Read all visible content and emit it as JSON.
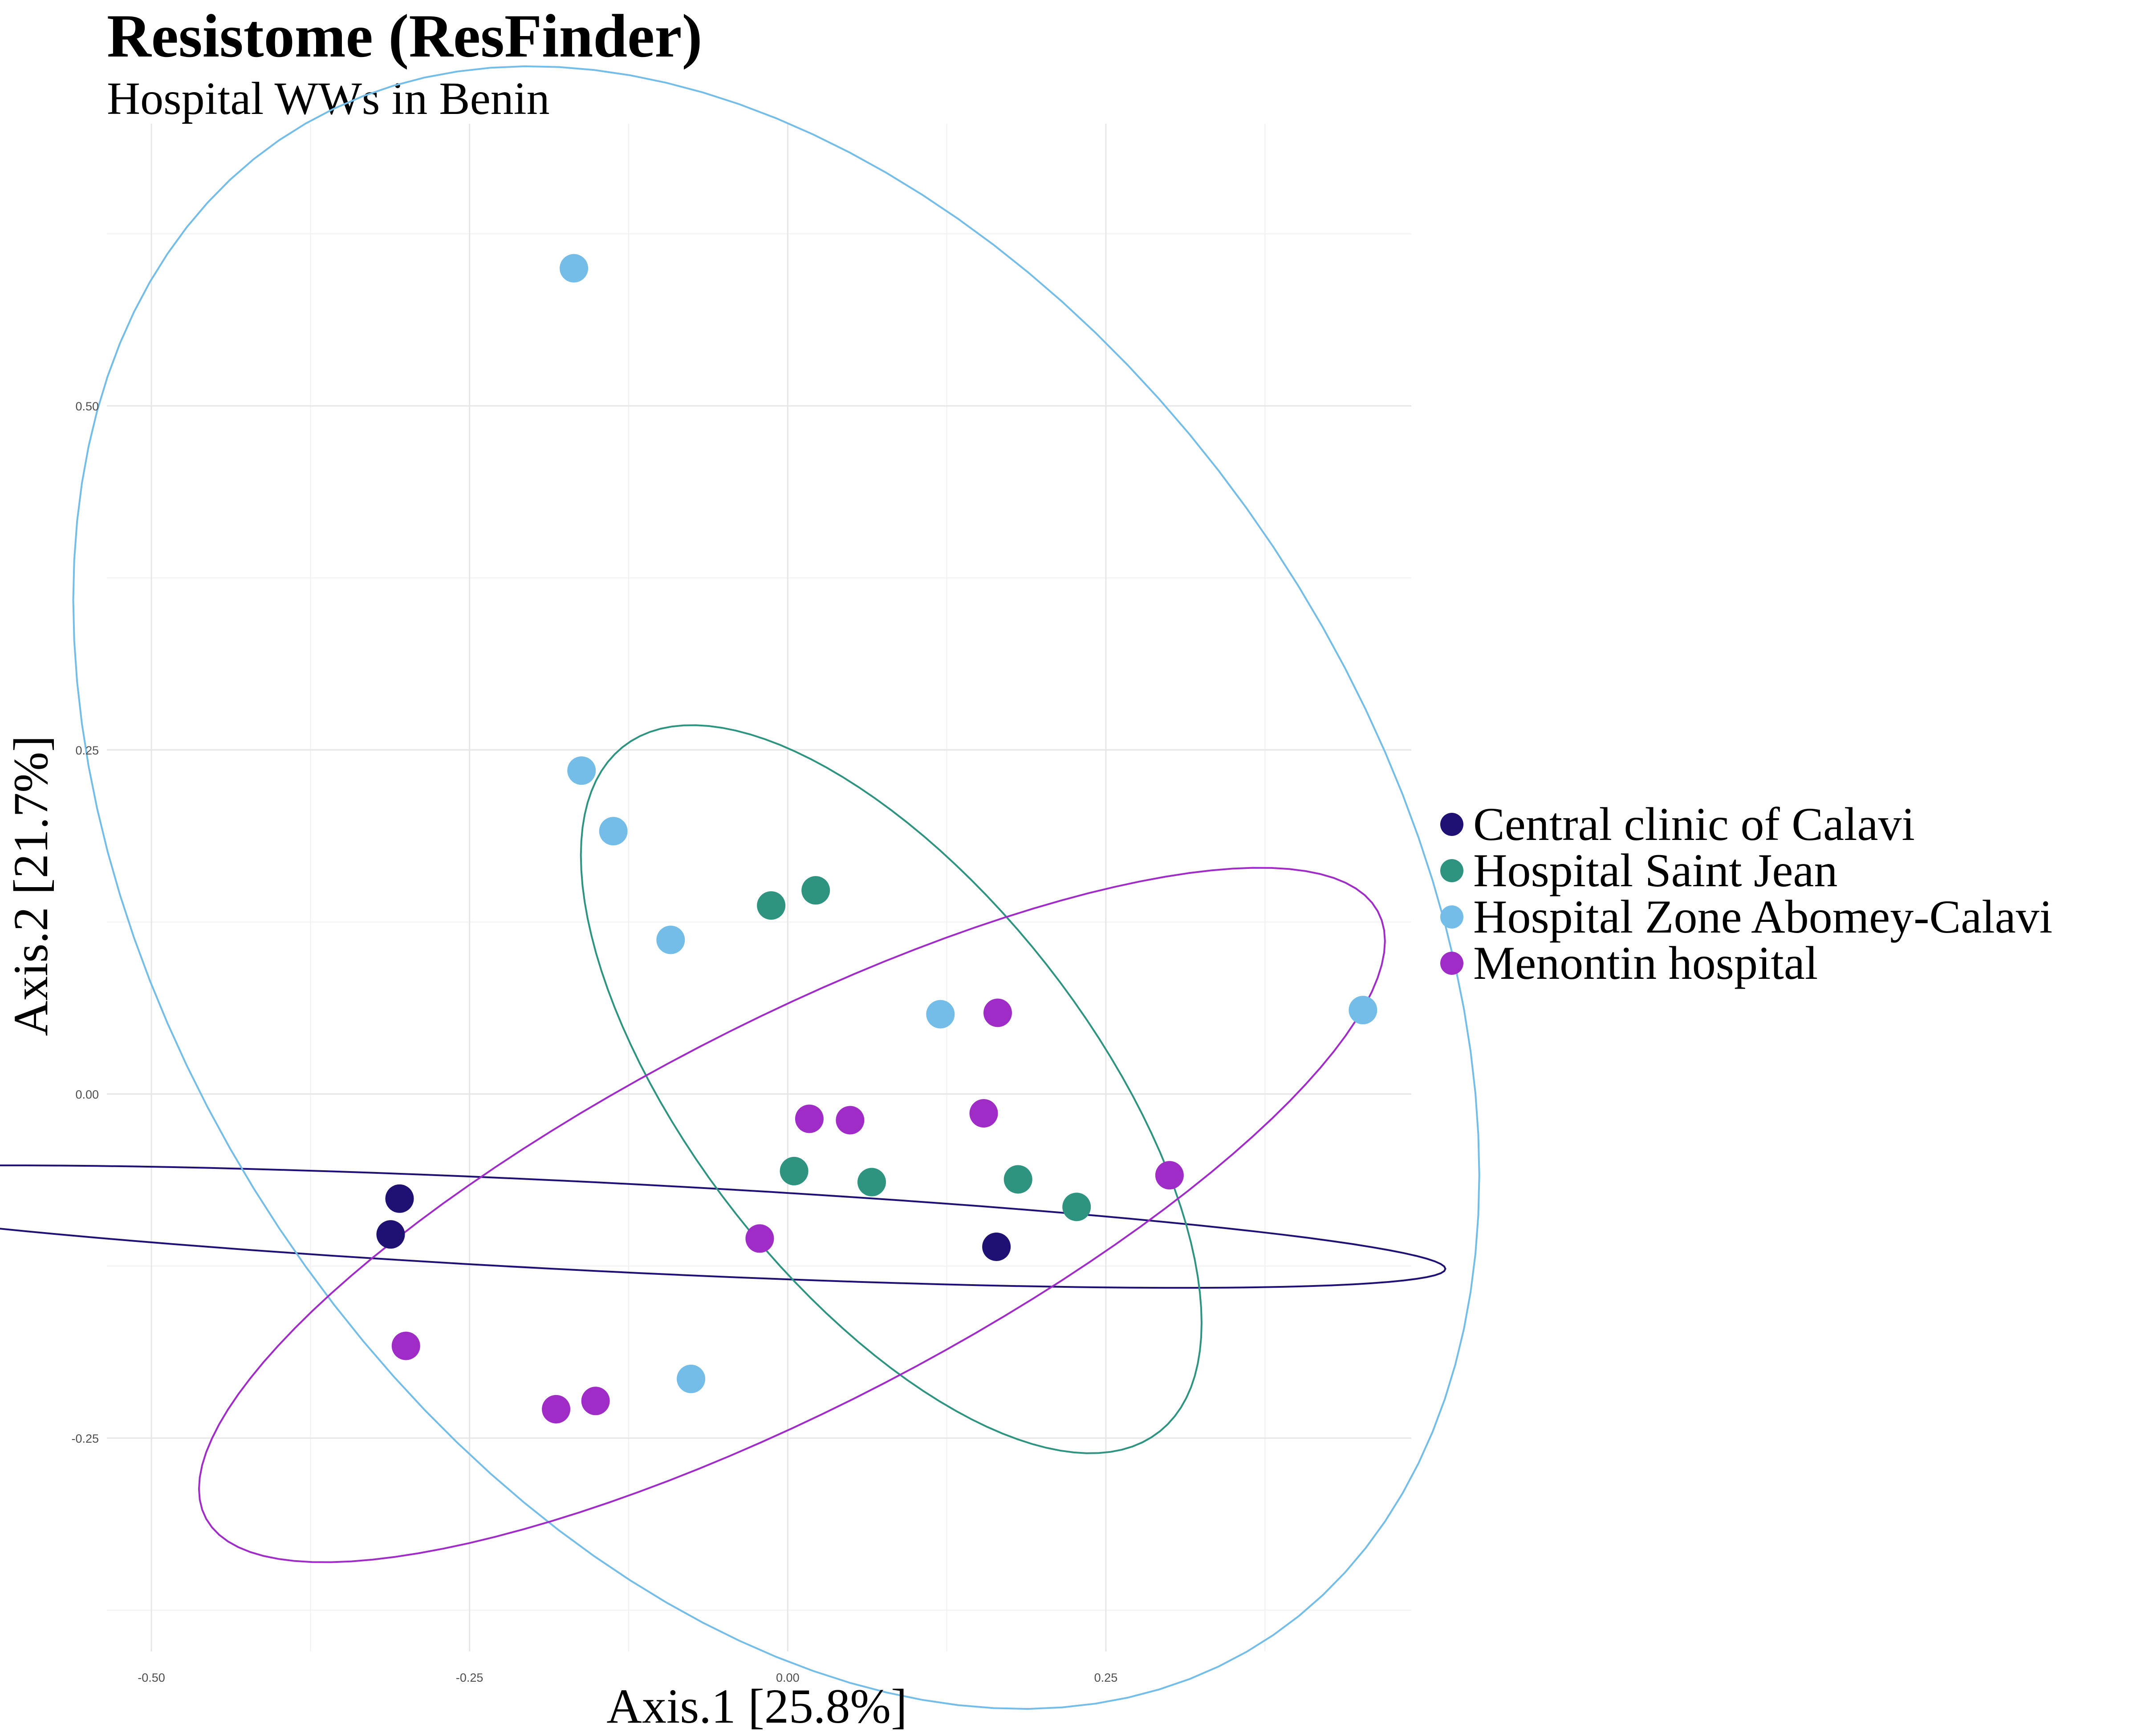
{
  "chart_data": {
    "type": "scatter",
    "title": "Resistome (ResFinder)",
    "subtitle": "Hospital WWs in Benin",
    "xlabel": "Axis.1   [25.8%]",
    "ylabel": "Axis.2   [21.7%]",
    "xlim": [
      -0.535,
      0.49
    ],
    "ylim": [
      -0.405,
      0.705
    ],
    "x_ticks": [
      -0.5,
      -0.25,
      0.0,
      0.25
    ],
    "x_tick_labels": [
      "-0.50",
      "-0.25",
      "0.00",
      "0.25"
    ],
    "y_ticks": [
      -0.25,
      0.0,
      0.25,
      0.5
    ],
    "y_tick_labels": [
      "-0.25",
      "0.00",
      "0.25",
      "0.50"
    ],
    "grid": true,
    "legend_position": "right",
    "series": [
      {
        "name": "Central clinic of Calavi",
        "color": "#1f1173",
        "points": [
          [
            -0.305,
            -0.076
          ],
          [
            -0.312,
            -0.102
          ],
          [
            0.164,
            -0.111
          ]
        ]
      },
      {
        "name": "Hospital Saint Jean",
        "color": "#2e9480",
        "points": [
          [
            -0.013,
            0.137
          ],
          [
            0.022,
            0.148
          ],
          [
            0.005,
            -0.056
          ],
          [
            0.066,
            -0.064
          ],
          [
            0.181,
            -0.062
          ],
          [
            0.227,
            -0.082
          ]
        ]
      },
      {
        "name": "Hospital Zone Abomey-Calavi",
        "color": "#73bde8",
        "points": [
          [
            -0.168,
            0.6
          ],
          [
            -0.162,
            0.235
          ],
          [
            -0.137,
            0.191
          ],
          [
            -0.092,
            0.112
          ],
          [
            0.12,
            0.058
          ],
          [
            0.452,
            0.061
          ],
          [
            -0.076,
            -0.207
          ]
        ]
      },
      {
        "name": "Menontin hospital",
        "color": "#a02cc8",
        "points": [
          [
            0.165,
            0.059
          ],
          [
            0.017,
            -0.018
          ],
          [
            0.049,
            -0.019
          ],
          [
            0.154,
            -0.014
          ],
          [
            0.3,
            -0.059
          ],
          [
            -0.022,
            -0.105
          ],
          [
            -0.3,
            -0.183
          ],
          [
            -0.182,
            -0.229
          ],
          [
            -0.151,
            -0.223
          ]
        ]
      }
    ]
  }
}
